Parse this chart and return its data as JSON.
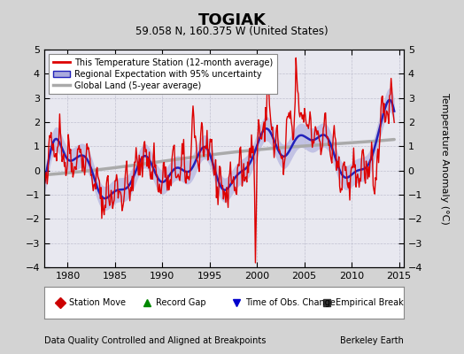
{
  "title": "TOGIAK",
  "subtitle": "59.058 N, 160.375 W (United States)",
  "ylabel": "Temperature Anomaly (°C)",
  "footer_left": "Data Quality Controlled and Aligned at Breakpoints",
  "footer_right": "Berkeley Earth",
  "xlim": [
    1977.5,
    2015.5
  ],
  "ylim": [
    -4,
    5
  ],
  "yticks": [
    -4,
    -3,
    -2,
    -1,
    0,
    1,
    2,
    3,
    4,
    5
  ],
  "xticks": [
    1980,
    1985,
    1990,
    1995,
    2000,
    2005,
    2010,
    2015
  ],
  "bg_color": "#d3d3d3",
  "plot_bg_color": "#e8e8f0",
  "grid_color": "#c0c0d0",
  "station_color": "#dd0000",
  "regional_color": "#2222bb",
  "regional_fill": "#aaaadd",
  "global_color": "#aaaaaa",
  "legend_labels": [
    "This Temperature Station (12-month average)",
    "Regional Expectation with 95% uncertainty",
    "Global Land (5-year average)"
  ],
  "bottom_legend": [
    {
      "label": "Station Move",
      "color": "#cc0000",
      "marker": "D"
    },
    {
      "label": "Record Gap",
      "color": "#008800",
      "marker": "^"
    },
    {
      "label": "Time of Obs. Change",
      "color": "#0000cc",
      "marker": "v"
    },
    {
      "label": "Empirical Break",
      "color": "#333333",
      "marker": "s"
    }
  ]
}
